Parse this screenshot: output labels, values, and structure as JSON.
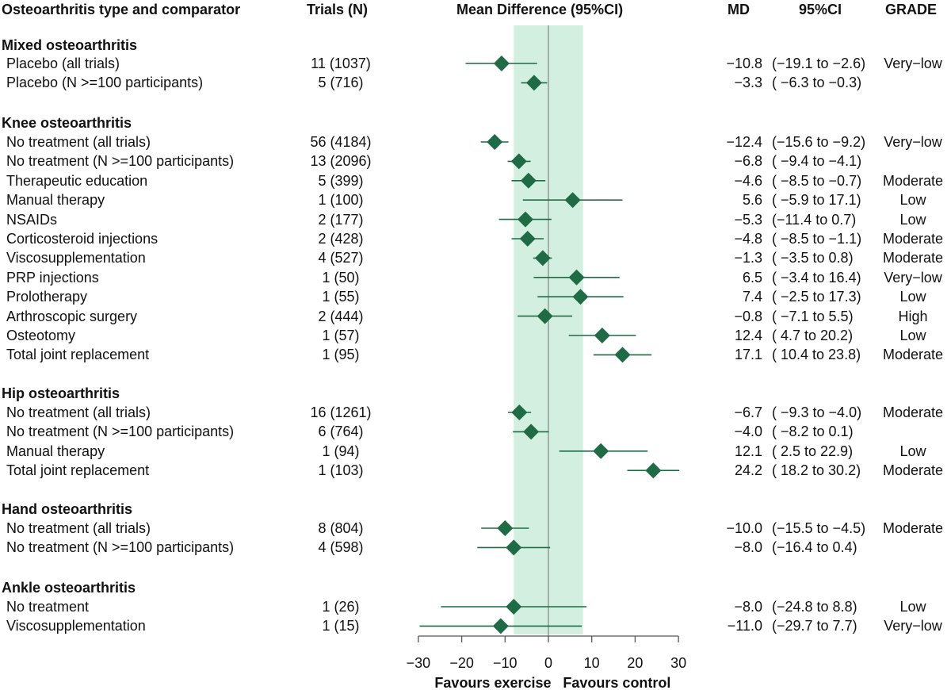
{
  "headers": {
    "label": "Osteoarthritis type and comparator",
    "trials": "Trials (N)",
    "plot": "Mean Difference (95%CI)",
    "md": "MD",
    "ci": "95%CI",
    "grade": "GRADE"
  },
  "chart_data": {
    "type": "forest",
    "title": "Mean Difference (95%CI)",
    "xlim": [
      -30,
      30
    ],
    "xticks": [
      -30,
      -20,
      -10,
      0,
      10,
      20,
      30
    ],
    "xlabel_left": "Favours exercise",
    "xlabel_right": "Favours control",
    "shaded_region": [
      -8,
      8
    ],
    "reference_line": 0,
    "groups": [
      {
        "name": "Mixed osteoarthritis",
        "rows": [
          {
            "label": "Placebo (all trials)",
            "trials": "11 (1037)",
            "md": -10.8,
            "lo": -19.1,
            "hi": -2.6,
            "md_text": "−10.8",
            "ci_text": "(−19.1 to −2.6)",
            "grade": "Very−low"
          },
          {
            "label": "Placebo (N >=100 participants)",
            "trials": "5 (716)",
            "md": -3.3,
            "lo": -6.3,
            "hi": -0.3,
            "md_text": "−3.3",
            "ci_text": "( −6.3 to −0.3)",
            "grade": ""
          }
        ]
      },
      {
        "name": "Knee osteoarthritis",
        "rows": [
          {
            "label": "No treatment (all trials)",
            "trials": "56 (4184)",
            "md": -12.4,
            "lo": -15.6,
            "hi": -9.2,
            "md_text": "−12.4",
            "ci_text": "(−15.6 to −9.2)",
            "grade": "Very−low"
          },
          {
            "label": "No treatment (N >=100 participants)",
            "trials": "13 (2096)",
            "md": -6.8,
            "lo": -9.4,
            "hi": -4.1,
            "md_text": "−6.8",
            "ci_text": "( −9.4 to −4.1)",
            "grade": ""
          },
          {
            "label": "Therapeutic education",
            "trials": "5 (399)",
            "md": -4.6,
            "lo": -8.5,
            "hi": -0.7,
            "md_text": "−4.6",
            "ci_text": "( −8.5 to −0.7)",
            "grade": "Moderate"
          },
          {
            "label": "Manual therapy",
            "trials": "1 (100)",
            "md": 5.6,
            "lo": -5.9,
            "hi": 17.1,
            "md_text": "5.6",
            "ci_text": "( −5.9 to 17.1)",
            "grade": "Low"
          },
          {
            "label": "NSAIDs",
            "trials": "2 (177)",
            "md": -5.3,
            "lo": -11.4,
            "hi": 0.7,
            "md_text": "−5.3",
            "ci_text": "(−11.4 to  0.7)",
            "grade": "Low"
          },
          {
            "label": "Corticosteroid injections",
            "trials": "2 (428)",
            "md": -4.8,
            "lo": -8.5,
            "hi": -1.1,
            "md_text": "−4.8",
            "ci_text": "( −8.5 to −1.1)",
            "grade": "Moderate"
          },
          {
            "label": "Viscosupplementation",
            "trials": "4 (527)",
            "md": -1.3,
            "lo": -3.5,
            "hi": 0.8,
            "md_text": "−1.3",
            "ci_text": "( −3.5 to  0.8)",
            "grade": "Moderate"
          },
          {
            "label": "PRP injections",
            "trials": "1 (50)",
            "md": 6.5,
            "lo": -3.4,
            "hi": 16.4,
            "md_text": "6.5",
            "ci_text": "( −3.4 to 16.4)",
            "grade": "Very−low"
          },
          {
            "label": "Prolotherapy",
            "trials": "1 (55)",
            "md": 7.4,
            "lo": -2.5,
            "hi": 17.3,
            "md_text": "7.4",
            "ci_text": "( −2.5 to 17.3)",
            "grade": "Low"
          },
          {
            "label": "Arthroscopic surgery",
            "trials": "2 (444)",
            "md": -0.8,
            "lo": -7.1,
            "hi": 5.5,
            "md_text": "−0.8",
            "ci_text": "( −7.1 to  5.5)",
            "grade": "High"
          },
          {
            "label": "Osteotomy",
            "trials": "1 (57)",
            "md": 12.4,
            "lo": 4.7,
            "hi": 20.2,
            "md_text": "12.4",
            "ci_text": "(  4.7 to 20.2)",
            "grade": "Low"
          },
          {
            "label": "Total joint replacement",
            "trials": "1 (95)",
            "md": 17.1,
            "lo": 10.4,
            "hi": 23.8,
            "md_text": "17.1",
            "ci_text": "( 10.4 to 23.8)",
            "grade": "Moderate"
          }
        ]
      },
      {
        "name": "Hip osteoarthritis",
        "rows": [
          {
            "label": "No treatment (all trials)",
            "trials": "16 (1261)",
            "md": -6.7,
            "lo": -9.3,
            "hi": -4.0,
            "md_text": "−6.7",
            "ci_text": "( −9.3 to −4.0)",
            "grade": "Moderate"
          },
          {
            "label": "No treatment (N >=100 participants)",
            "trials": "6 (764)",
            "md": -4.0,
            "lo": -8.2,
            "hi": 0.1,
            "md_text": "−4.0",
            "ci_text": "( −8.2 to  0.1)",
            "grade": ""
          },
          {
            "label": "Manual therapy",
            "trials": "1 (94)",
            "md": 12.1,
            "lo": 2.5,
            "hi": 22.9,
            "md_text": "12.1",
            "ci_text": "(  2.5 to 22.9)",
            "grade": "Low"
          },
          {
            "label": "Total joint replacement",
            "trials": "1 (103)",
            "md": 24.2,
            "lo": 18.2,
            "hi": 30.2,
            "md_text": "24.2",
            "ci_text": "( 18.2 to 30.2)",
            "grade": "Moderate"
          }
        ]
      },
      {
        "name": "Hand osteoarthritis",
        "rows": [
          {
            "label": "No treatment (all trials)",
            "trials": "8 (804)",
            "md": -10.0,
            "lo": -15.5,
            "hi": -4.5,
            "md_text": "−10.0",
            "ci_text": "(−15.5 to −4.5)",
            "grade": "Moderate"
          },
          {
            "label": "No treatment (N >=100 participants)",
            "trials": "4 (598)",
            "md": -8.0,
            "lo": -16.4,
            "hi": 0.4,
            "md_text": "−8.0",
            "ci_text": "(−16.4 to  0.4)",
            "grade": ""
          }
        ]
      },
      {
        "name": "Ankle osteoarthritis",
        "rows": [
          {
            "label": "No treatment",
            "trials": "1 (26)",
            "md": -8.0,
            "lo": -24.8,
            "hi": 8.8,
            "md_text": "−8.0",
            "ci_text": "(−24.8 to  8.8)",
            "grade": "Low"
          },
          {
            "label": "Viscosupplementation",
            "trials": "1 (15)",
            "md": -11.0,
            "lo": -29.7,
            "hi": 7.7,
            "md_text": "−11.0",
            "ci_text": "(−29.7 to  7.7)",
            "grade": "Very−low"
          }
        ]
      }
    ]
  },
  "colors": {
    "marker": "#1e6b45",
    "shade": "#d2efe0",
    "refline": "#8c8c8c",
    "axis": "#555555"
  }
}
